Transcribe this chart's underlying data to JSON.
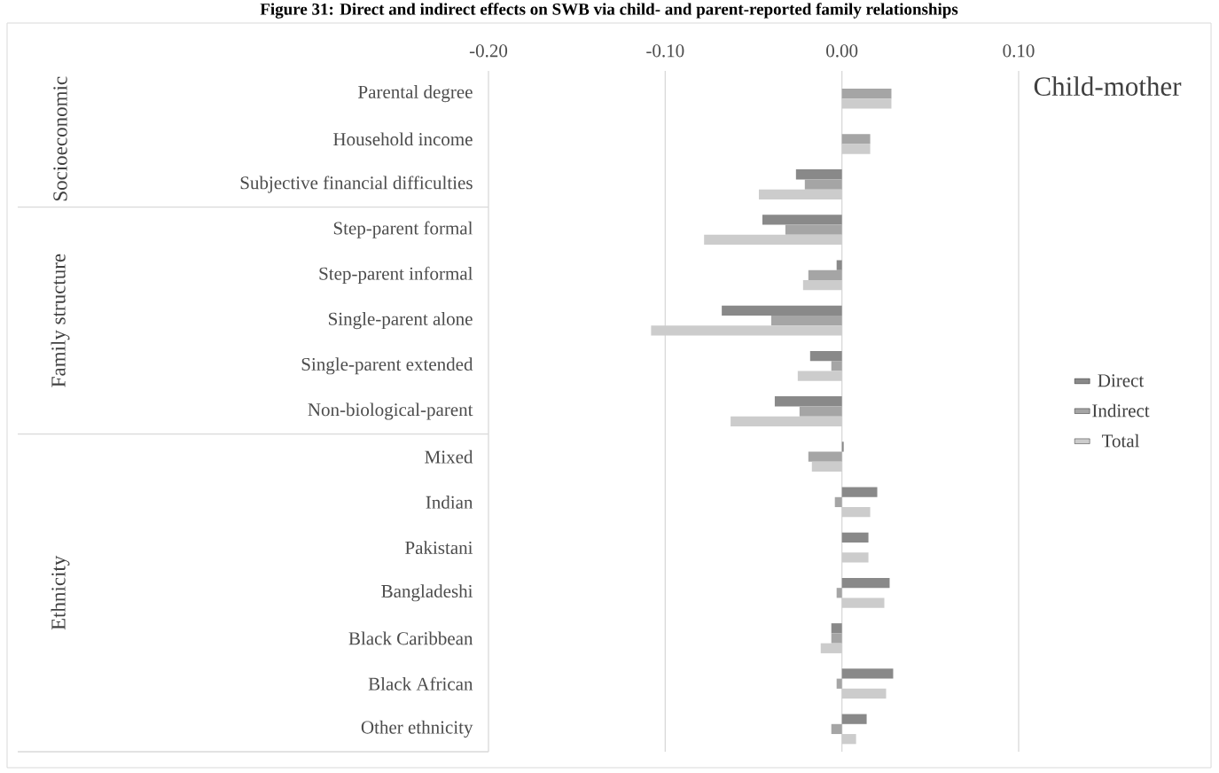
{
  "chart_data": {
    "type": "bar",
    "orientation": "horizontal",
    "title": "Figure 31: Direct and indirect effects on SWB via child- and parent-reported family relationships",
    "subtitle": "Child-mother",
    "annotations": [
      "Socioeconomic",
      "Family structure",
      "Ethnicity"
    ],
    "categories": [
      "Parental degree",
      "Household income",
      "Subjective financial difficulties",
      "Step-parent formal",
      "Step-parent informal",
      "Single-parent alone",
      "Single-parent extended",
      "Non-biological-parent",
      "Mixed",
      "Indian",
      "Pakistani",
      "Bangladeshi",
      "Black Caribbean",
      "Black African",
      "Other ethnicity"
    ],
    "series": [
      {
        "name": "Direct",
        "color": "#898989",
        "values": [
          null,
          null,
          -0.026,
          -0.045,
          -0.003,
          -0.068,
          -0.018,
          -0.038,
          0.001,
          0.02,
          0.015,
          0.027,
          -0.006,
          0.029,
          0.014
        ]
      },
      {
        "name": "Indirect",
        "color": "#a5a5a5",
        "values": [
          0.028,
          0.016,
          -0.021,
          -0.032,
          -0.019,
          -0.04,
          -0.006,
          -0.024,
          -0.019,
          -0.004,
          null,
          -0.003,
          -0.006,
          -0.003,
          -0.006
        ]
      },
      {
        "name": "Total",
        "color": "#cccccc",
        "values": [
          0.028,
          0.016,
          -0.047,
          -0.078,
          -0.022,
          -0.108,
          -0.025,
          -0.063,
          -0.017,
          0.016,
          0.015,
          0.024,
          -0.012,
          0.025,
          0.008
        ]
      }
    ],
    "xlim": [
      -0.2,
      0.1
    ],
    "xticks": [
      {
        "value": -0.2,
        "label": "-0.20"
      },
      {
        "value": -0.1,
        "label": "-0.10"
      },
      {
        "value": 0,
        "label": "0.00"
      },
      {
        "value": 0.1,
        "label": "0.10"
      }
    ],
    "grid": "x",
    "legend": "right"
  }
}
